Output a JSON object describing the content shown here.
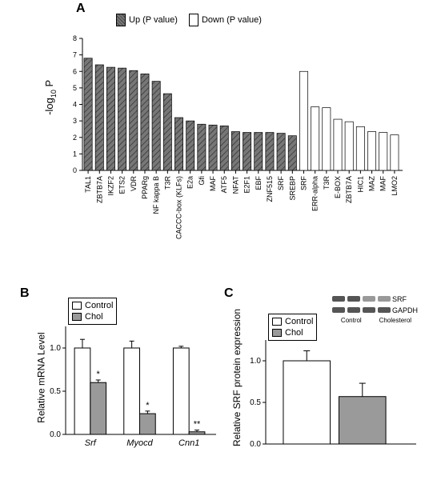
{
  "labels": {
    "A": "A",
    "B": "B",
    "C": "C"
  },
  "panelA": {
    "type": "bar",
    "legend_up": "Up (P value)",
    "legend_down": "Down (P value)",
    "ylabel_html": "-log<sub>10</sub> P",
    "ylim": [
      0,
      8
    ],
    "ytick_step": 1,
    "axis_color": "#000",
    "bg": "#fff",
    "up": {
      "color": "#777",
      "hatch": "diag",
      "categories": [
        "TAL1",
        "ZBTB7A",
        "IKZF2",
        "ETS2",
        "VDR",
        "PPARg",
        "NF kappa B",
        "T3R",
        "CACCC-box (KLFs)",
        "E2a",
        "Gfi",
        "MAF",
        "ATF5",
        "NFAT",
        "E2F1",
        "EBF",
        "ZNF515",
        "SRF",
        "SREBP"
      ],
      "values": [
        6.8,
        6.4,
        6.25,
        6.2,
        6.05,
        5.85,
        5.4,
        4.65,
        3.2,
        3.0,
        2.8,
        2.75,
        2.7,
        2.35,
        2.3,
        2.3,
        2.3,
        2.25,
        2.1
      ]
    },
    "down": {
      "color": "#fff",
      "categories": [
        "SRF",
        "ERR-alpha",
        "T3R",
        "E-BOX",
        "ZBTB7A",
        "HIC1",
        "MAZ",
        "MAF",
        "LMO2"
      ],
      "values": [
        6.0,
        3.85,
        3.8,
        3.1,
        2.95,
        2.65,
        2.35,
        2.3,
        2.15
      ]
    },
    "bar_width": 0.72,
    "label_fontsize": 9,
    "tick_fontsize": 9
  },
  "panelB": {
    "type": "grouped-bar",
    "ylabel": "Relative mRNA Level",
    "ylim": [
      0,
      1.25
    ],
    "yticks": [
      0.0,
      0.5,
      1.0
    ],
    "groups": [
      "Srf",
      "Myocd",
      "Cnn1"
    ],
    "series": [
      {
        "name": "Control",
        "color": "#ffffff",
        "values": [
          1.0,
          1.0,
          1.0
        ],
        "err": [
          0.1,
          0.08,
          0.02
        ]
      },
      {
        "name": "Chol",
        "color": "#9a9a9a",
        "values": [
          0.6,
          0.24,
          0.03
        ],
        "err": [
          0.03,
          0.03,
          0.02
        ]
      }
    ],
    "annotations": [
      {
        "group": 0,
        "series": 1,
        "text": "*"
      },
      {
        "group": 1,
        "series": 1,
        "text": "*"
      },
      {
        "group": 2,
        "series": 1,
        "text": "**"
      }
    ],
    "annot_fontsize": 11,
    "tick_fontsize": 10
  },
  "panelC": {
    "type": "bar",
    "ylabel": "Relative SRF protein expression",
    "ylim": [
      0,
      1.25
    ],
    "yticks": [
      0.0,
      0.5,
      1.0
    ],
    "series": [
      {
        "name": "Control",
        "color": "#ffffff",
        "value": 1.0,
        "err": 0.12
      },
      {
        "name": "Chol",
        "color": "#9a9a9a",
        "value": 0.57,
        "err": 0.16
      }
    ],
    "inset": {
      "row_labels": [
        "SRF",
        "GAPDH"
      ],
      "group_labels": [
        "Control",
        "Cholesterol"
      ],
      "lanes": 4,
      "band_color": "#4d4d4d"
    },
    "tick_fontsize": 10
  }
}
